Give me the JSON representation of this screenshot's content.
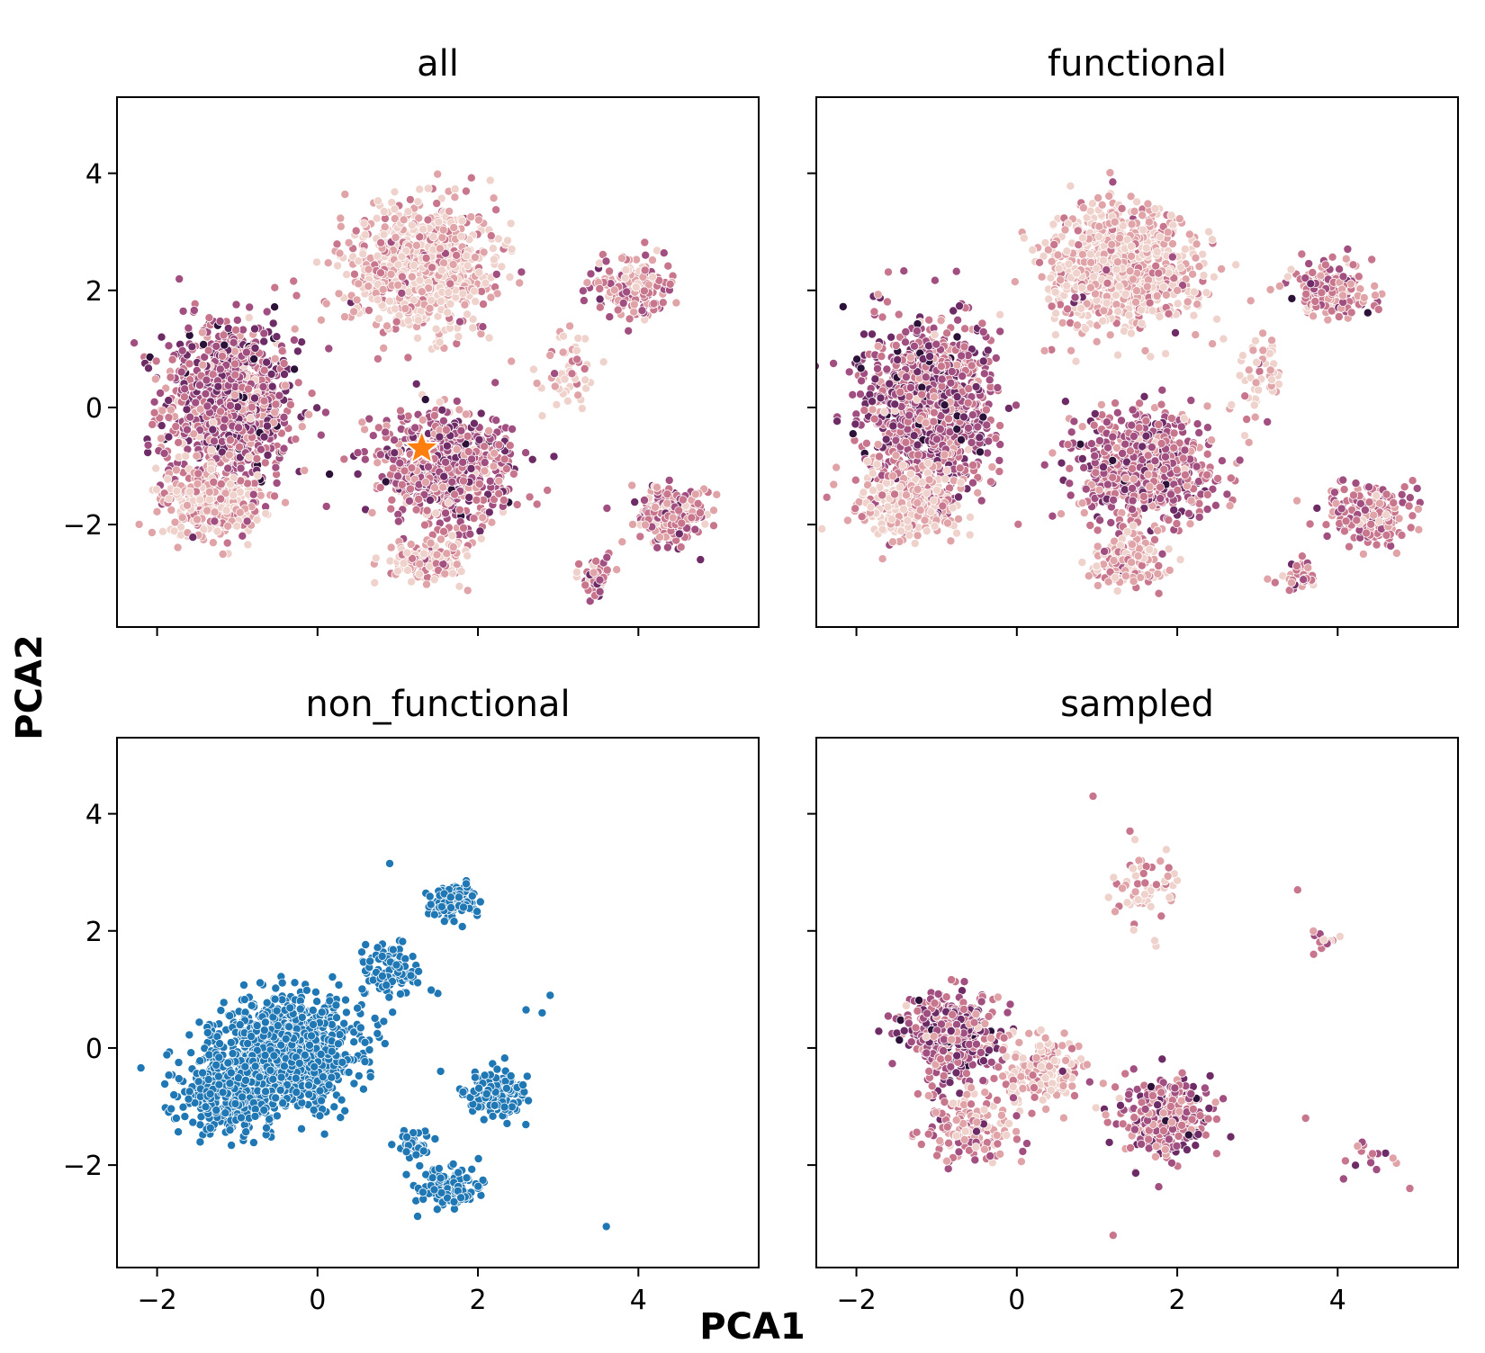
{
  "figure": {
    "xlabel": "PCA1",
    "ylabel": "PCA2"
  },
  "chart_data": [
    {
      "type": "scatter",
      "title": "all",
      "xlim": [
        -2.5,
        5.5
      ],
      "ylim": [
        -3.75,
        5.3
      ],
      "xticks": [
        -2,
        0,
        2,
        4
      ],
      "yticks": [
        -2,
        0,
        2,
        4
      ],
      "xtick_labels": [
        "−2",
        "0",
        "2",
        "4"
      ],
      "ytick_labels": [
        "−2",
        "0",
        "2",
        "4"
      ],
      "show_xtick_labels": false,
      "show_ytick_labels": true,
      "grid": false,
      "colormap": [
        "#f0d2cc",
        "#e0a4a8",
        "#c8768e",
        "#a14f80",
        "#6e2c67",
        "#2c1139"
      ],
      "clusters": [
        {
          "cx": -1.1,
          "cy": 0.05,
          "sx": 0.75,
          "sy": 1.3,
          "n": 1000,
          "shade": 0.55
        },
        {
          "cx": -1.35,
          "cy": -1.6,
          "sx": 0.6,
          "sy": 0.55,
          "n": 300,
          "shade": 0.15
        },
        {
          "cx": 1.3,
          "cy": 2.4,
          "sx": 0.85,
          "sy": 0.95,
          "n": 850,
          "shade": 0.1
        },
        {
          "cx": 1.6,
          "cy": -1.0,
          "sx": 0.75,
          "sy": 0.85,
          "n": 700,
          "shade": 0.5
        },
        {
          "cx": 1.4,
          "cy": -2.6,
          "sx": 0.45,
          "sy": 0.35,
          "n": 150,
          "shade": 0.15
        },
        {
          "cx": 3.9,
          "cy": 2.0,
          "sx": 0.45,
          "sy": 0.45,
          "n": 180,
          "shade": 0.35
        },
        {
          "cx": 4.4,
          "cy": -1.8,
          "sx": 0.45,
          "sy": 0.45,
          "n": 200,
          "shade": 0.4
        },
        {
          "cx": 3.5,
          "cy": -2.9,
          "sx": 0.2,
          "sy": 0.3,
          "n": 40,
          "shade": 0.4
        },
        {
          "cx": 3.1,
          "cy": 0.5,
          "sx": 0.3,
          "sy": 0.7,
          "n": 50,
          "shade": 0.1
        }
      ],
      "marker": {
        "x": 1.3,
        "y": -0.7,
        "color": "#ff7f0e"
      }
    },
    {
      "type": "scatter",
      "title": "functional",
      "xlim": [
        -2.5,
        5.5
      ],
      "ylim": [
        -3.75,
        5.3
      ],
      "xticks": [
        -2,
        0,
        2,
        4
      ],
      "yticks": [
        -2,
        0,
        2,
        4
      ],
      "xtick_labels": [
        "−2",
        "0",
        "2",
        "4"
      ],
      "ytick_labels": [
        "−2",
        "0",
        "2",
        "4"
      ],
      "show_xtick_labels": false,
      "show_ytick_labels": false,
      "grid": false,
      "colormap": [
        "#f0d2cc",
        "#e0a4a8",
        "#c8768e",
        "#a14f80",
        "#6e2c67",
        "#2c1139"
      ],
      "clusters": [
        {
          "cx": -1.1,
          "cy": 0.05,
          "sx": 0.75,
          "sy": 1.3,
          "n": 1000,
          "shade": 0.55
        },
        {
          "cx": -1.35,
          "cy": -1.6,
          "sx": 0.6,
          "sy": 0.55,
          "n": 300,
          "shade": 0.15
        },
        {
          "cx": 1.3,
          "cy": 2.4,
          "sx": 0.85,
          "sy": 0.95,
          "n": 850,
          "shade": 0.1
        },
        {
          "cx": 1.6,
          "cy": -1.0,
          "sx": 0.75,
          "sy": 0.85,
          "n": 700,
          "shade": 0.5
        },
        {
          "cx": 1.4,
          "cy": -2.6,
          "sx": 0.45,
          "sy": 0.35,
          "n": 150,
          "shade": 0.15
        },
        {
          "cx": 3.9,
          "cy": 2.0,
          "sx": 0.45,
          "sy": 0.45,
          "n": 180,
          "shade": 0.35
        },
        {
          "cx": 4.4,
          "cy": -1.8,
          "sx": 0.45,
          "sy": 0.45,
          "n": 200,
          "shade": 0.4
        },
        {
          "cx": 3.5,
          "cy": -2.9,
          "sx": 0.2,
          "sy": 0.3,
          "n": 40,
          "shade": 0.4
        },
        {
          "cx": 3.1,
          "cy": 0.5,
          "sx": 0.3,
          "sy": 0.7,
          "n": 50,
          "shade": 0.1
        }
      ]
    },
    {
      "type": "scatter",
      "title": "non_functional",
      "xlim": [
        -2.5,
        5.5
      ],
      "ylim": [
        -3.75,
        5.3
      ],
      "xticks": [
        -2,
        0,
        2,
        4
      ],
      "yticks": [
        -2,
        0,
        2,
        4
      ],
      "xtick_labels": [
        "−2",
        "0",
        "2",
        "4"
      ],
      "ytick_labels": [
        "−2",
        "0",
        "2",
        "4"
      ],
      "show_xtick_labels": true,
      "show_ytick_labels": true,
      "grid": false,
      "color": "#1f77b4",
      "clusters": [
        {
          "cx": -0.4,
          "cy": -0.1,
          "sx": 0.75,
          "sy": 0.8,
          "n": 1100
        },
        {
          "cx": -1.1,
          "cy": -0.8,
          "sx": 0.55,
          "sy": 0.6,
          "n": 300
        },
        {
          "cx": 1.7,
          "cy": 2.5,
          "sx": 0.25,
          "sy": 0.25,
          "n": 130
        },
        {
          "cx": 2.2,
          "cy": -0.8,
          "sx": 0.35,
          "sy": 0.35,
          "n": 200
        },
        {
          "cx": 1.6,
          "cy": -2.4,
          "sx": 0.35,
          "sy": 0.3,
          "n": 150
        },
        {
          "cx": 0.9,
          "cy": 1.3,
          "sx": 0.35,
          "sy": 0.45,
          "n": 110
        },
        {
          "cx": 1.2,
          "cy": -1.7,
          "sx": 0.25,
          "sy": 0.25,
          "n": 40
        }
      ],
      "extra_points": [
        [
          3.6,
          -3.05
        ],
        [
          2.9,
          0.9
        ],
        [
          2.8,
          0.6
        ],
        [
          2.6,
          0.65
        ],
        [
          0.9,
          3.15
        ]
      ]
    },
    {
      "type": "scatter",
      "title": "sampled",
      "xlim": [
        -2.5,
        5.5
      ],
      "ylim": [
        -3.75,
        5.3
      ],
      "xticks": [
        -2,
        0,
        2,
        4
      ],
      "yticks": [
        -2,
        0,
        2,
        4
      ],
      "xtick_labels": [
        "−2",
        "0",
        "2",
        "4"
      ],
      "ytick_labels": [
        "−2",
        "0",
        "2",
        "4"
      ],
      "show_xtick_labels": true,
      "show_ytick_labels": false,
      "grid": false,
      "colormap": [
        "#f0d2cc",
        "#e0a4a8",
        "#c8768e",
        "#a14f80",
        "#6e2c67",
        "#2c1139"
      ],
      "clusters": [
        {
          "cx": -0.8,
          "cy": 0.2,
          "sx": 0.55,
          "sy": 0.7,
          "n": 380,
          "shade": 0.55
        },
        {
          "cx": 0.3,
          "cy": -0.4,
          "sx": 0.55,
          "sy": 0.6,
          "n": 180,
          "shade": 0.12
        },
        {
          "cx": -0.6,
          "cy": -1.4,
          "sx": 0.55,
          "sy": 0.5,
          "n": 160,
          "shade": 0.3
        },
        {
          "cx": 1.9,
          "cy": -1.2,
          "sx": 0.5,
          "sy": 0.6,
          "n": 300,
          "shade": 0.5
        },
        {
          "cx": 1.6,
          "cy": 2.7,
          "sx": 0.35,
          "sy": 0.6,
          "n": 60,
          "shade": 0.1
        },
        {
          "cx": 3.8,
          "cy": 1.85,
          "sx": 0.15,
          "sy": 0.15,
          "n": 12,
          "shade": 0.4
        },
        {
          "cx": 4.4,
          "cy": -1.9,
          "sx": 0.35,
          "sy": 0.4,
          "n": 15,
          "shade": 0.4
        }
      ],
      "extra_points": [
        [
          0.95,
          4.3
        ],
        [
          3.5,
          2.7
        ],
        [
          3.7,
          1.6
        ],
        [
          3.6,
          -1.2
        ],
        [
          4.9,
          -2.4
        ],
        [
          1.2,
          -3.2
        ]
      ]
    }
  ]
}
